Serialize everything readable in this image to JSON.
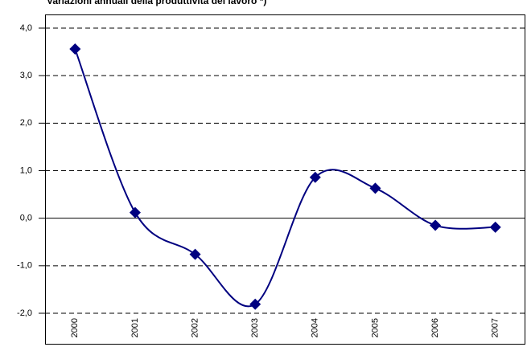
{
  "chart_data": {
    "type": "line",
    "title": "Variazioni annuali della produttività del lavoro *)",
    "categories": [
      "2000",
      "2001",
      "2002",
      "2003",
      "2004",
      "2005",
      "2006",
      "2007"
    ],
    "values": [
      3.56,
      0.12,
      -0.76,
      -1.81,
      0.86,
      0.63,
      -0.15,
      -0.19
    ],
    "color": "#000080",
    "smooth": true,
    "ylim": [
      -2,
      4
    ],
    "yticks": [
      {
        "value": -2,
        "label": "-2,0"
      },
      {
        "value": -1,
        "label": "-1,0"
      },
      {
        "value": 0,
        "label": "0,0"
      },
      {
        "value": 1,
        "label": "1,0"
      },
      {
        "value": 2,
        "label": "2,0"
      },
      {
        "value": 3,
        "label": "3,0"
      },
      {
        "value": 4,
        "label": "4,0"
      }
    ],
    "grid": true
  }
}
